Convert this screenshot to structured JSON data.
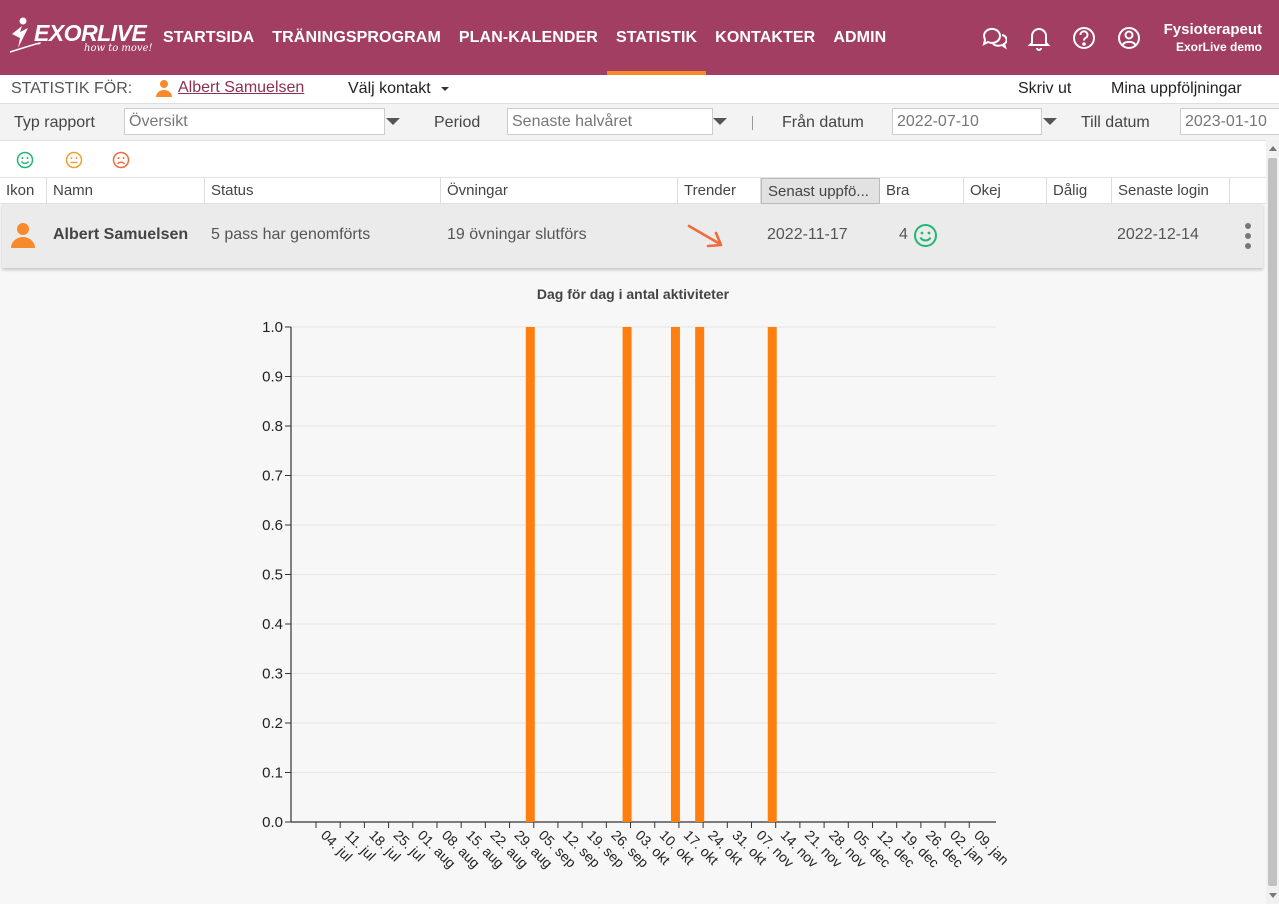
{
  "app": {
    "logo_text": "EXORLIVE",
    "logo_tagline": "how to move!"
  },
  "nav": {
    "items": [
      {
        "label": "STARTSIDA",
        "active": false
      },
      {
        "label": "TRÄNINGSPROGRAM",
        "active": false
      },
      {
        "label": "PLAN-KALENDER",
        "active": false
      },
      {
        "label": "STATISTIK",
        "active": true
      },
      {
        "label": "KONTAKTER",
        "active": false
      },
      {
        "label": "ADMIN",
        "active": false
      }
    ],
    "icons": [
      "chat-icon",
      "bell-icon",
      "help-icon",
      "account-icon"
    ]
  },
  "user": {
    "role": "Fysioterapeut",
    "org": "ExorLive demo"
  },
  "statbar": {
    "label": "STATISTIK FÖR:",
    "contact_name": "Albert Samuelsen",
    "choose_contact": "Välj kontakt",
    "print": "Skriv ut",
    "followups": "Mina uppföljningar"
  },
  "filters": {
    "report_type_label": "Typ rapport",
    "report_type_value": "Översikt",
    "period_label": "Period",
    "period_value": "Senaste halvåret",
    "from_label": "Från datum",
    "from_value": "2022-07-10",
    "to_label": "Till datum",
    "to_value": "2023-01-10"
  },
  "table": {
    "headers": [
      "Ikon",
      "Namn",
      "Status",
      "Övningar",
      "Trender",
      "Senast uppfö...",
      "Bra",
      "Okej",
      "Dålig",
      "Senaste login"
    ],
    "row": {
      "name": "Albert Samuelsen",
      "status": "5 pass har genomförts",
      "exercises": "19 övningar slutförs",
      "trend": "down",
      "last_followup": "2022-11-17",
      "good": "4",
      "ok": "",
      "bad": "",
      "last_login": "2022-12-14"
    }
  },
  "colors": {
    "brand": "#a23e62",
    "accent": "#f78a2b",
    "good": "#22b573",
    "ok": "#f0a030",
    "bad": "#f26a3a"
  },
  "chart_data": {
    "type": "bar",
    "title": "Dag för dag i antal aktiviteter",
    "xlabel": "",
    "ylabel": "",
    "ylim": [
      0,
      1
    ],
    "yticks": [
      "0.0",
      "0.1",
      "0.2",
      "0.3",
      "0.4",
      "0.5",
      "0.6",
      "0.7",
      "0.8",
      "0.9",
      "1.0"
    ],
    "xtick_labels": [
      "04. jul",
      "11. jul",
      "18. jul",
      "25. jul",
      "01. aug",
      "08. aug",
      "15. aug",
      "22. aug",
      "29. aug",
      "05. sep",
      "12. sep",
      "19. sep",
      "26. sep",
      "03. okt",
      "10. okt",
      "17. okt",
      "24. okt",
      "31. okt",
      "07. nov",
      "14. nov",
      "21. nov",
      "28. nov",
      "05. dec",
      "12. dec",
      "19. dec",
      "26. dec",
      "02. jan",
      "09. jan"
    ],
    "x_start": "2022-07-04",
    "x_end": "2023-01-15",
    "series": [
      {
        "color": "#ff7f0e",
        "points": [
          {
            "date": "2022-09-04",
            "value": 1
          },
          {
            "date": "2022-10-02",
            "value": 1
          },
          {
            "date": "2022-10-16",
            "value": 1
          },
          {
            "date": "2022-10-23",
            "value": 1
          },
          {
            "date": "2022-11-13",
            "value": 1
          }
        ]
      }
    ]
  }
}
